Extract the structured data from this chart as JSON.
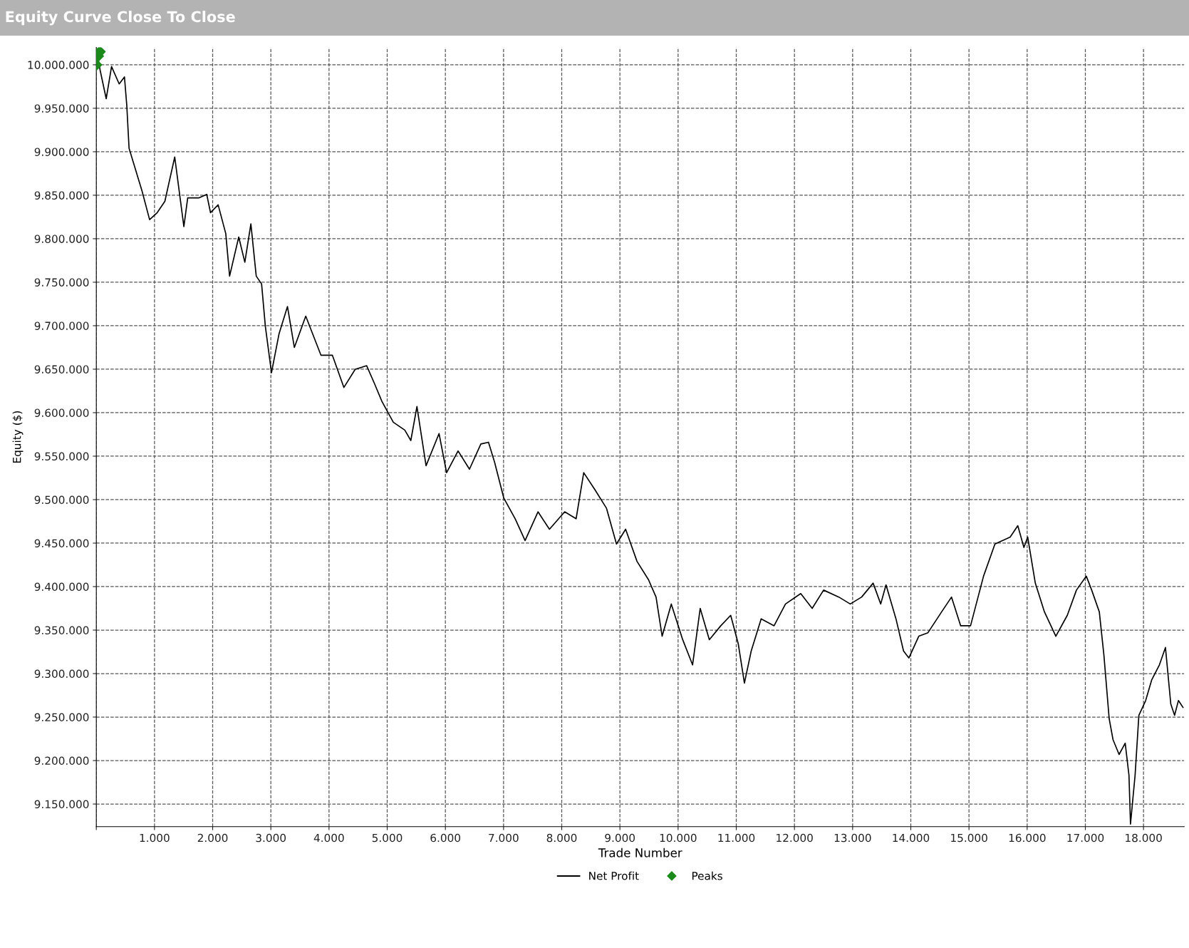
{
  "chart_data": {
    "type": "line",
    "title": "Equity Curve Close To Close",
    "xlabel": "Trade Number",
    "ylabel": "Equity ($)",
    "xlim": [
      0,
      18700
    ],
    "ylim": [
      9124000,
      10020000
    ],
    "xticks": [
      {
        "value": 0,
        "label": null
      },
      {
        "value": 1000,
        "label": "1.000"
      },
      {
        "value": 2000,
        "label": "2.000"
      },
      {
        "value": 3000,
        "label": "3.000"
      },
      {
        "value": 4000,
        "label": "4.000"
      },
      {
        "value": 5000,
        "label": "5.000"
      },
      {
        "value": 6000,
        "label": "6.000"
      },
      {
        "value": 7000,
        "label": "7.000"
      },
      {
        "value": 8000,
        "label": "8.000"
      },
      {
        "value": 9000,
        "label": "9.000"
      },
      {
        "value": 10000,
        "label": "10.000"
      },
      {
        "value": 11000,
        "label": "11.000"
      },
      {
        "value": 12000,
        "label": "12.000"
      },
      {
        "value": 13000,
        "label": "13.000"
      },
      {
        "value": 14000,
        "label": "14.000"
      },
      {
        "value": 15000,
        "label": "15.000"
      },
      {
        "value": 16000,
        "label": "16.000"
      },
      {
        "value": 17000,
        "label": "17.000"
      },
      {
        "value": 18000,
        "label": "18.000"
      }
    ],
    "yticks": [
      {
        "value": 9150000,
        "label": "9.150.000"
      },
      {
        "value": 9200000,
        "label": "9.200.000"
      },
      {
        "value": 9250000,
        "label": "9.250.000"
      },
      {
        "value": 9300000,
        "label": "9.300.000"
      },
      {
        "value": 9350000,
        "label": "9.350.000"
      },
      {
        "value": 9400000,
        "label": "9.400.000"
      },
      {
        "value": 9450000,
        "label": "9.450.000"
      },
      {
        "value": 9500000,
        "label": "9.500.000"
      },
      {
        "value": 9550000,
        "label": "9.550.000"
      },
      {
        "value": 9600000,
        "label": "9.600.000"
      },
      {
        "value": 9650000,
        "label": "9.650.000"
      },
      {
        "value": 9700000,
        "label": "9.700.000"
      },
      {
        "value": 9750000,
        "label": "9.750.000"
      },
      {
        "value": 9800000,
        "label": "9.800.000"
      },
      {
        "value": 9850000,
        "label": "9.850.000"
      },
      {
        "value": 9900000,
        "label": "9.900.000"
      },
      {
        "value": 9950000,
        "label": "9.950.000"
      },
      {
        "value": 10000000,
        "label": "10.000.000"
      }
    ],
    "grid": true,
    "legend": "bottom",
    "series": [
      {
        "name": "Net Profit",
        "color": "#000000",
        "marker": "none",
        "line_style": "solid",
        "x": [
          13,
          65,
          170,
          262,
          393,
          484,
          524,
          563,
          654,
          785,
          916,
          1047,
          1178,
          1348,
          1440,
          1505,
          1571,
          1767,
          1898,
          1963,
          2094,
          2225,
          2291,
          2448,
          2553,
          2657,
          2749,
          2841,
          2906,
          3011,
          3142,
          3286,
          3404,
          3600,
          3862,
          4058,
          4255,
          4451,
          4647,
          4778,
          4909,
          5105,
          5302,
          5406,
          5511,
          5668,
          5891,
          6021,
          6218,
          6414,
          6610,
          6741,
          6846,
          7003,
          7200,
          7370,
          7592,
          7789,
          8051,
          8247,
          8378,
          8574,
          8770,
          8941,
          9098,
          9294,
          9491,
          9621,
          9726,
          9883,
          10079,
          10249,
          10380,
          10537,
          10734,
          10904,
          11035,
          11140,
          11257,
          11428,
          11650,
          11846,
          12108,
          12305,
          12501,
          12763,
          12959,
          13155,
          13352,
          13483,
          13574,
          13745,
          13875,
          13967,
          14137,
          14295,
          14530,
          14700,
          14857,
          15027,
          15250,
          15446,
          15708,
          15839,
          15944,
          16009,
          16140,
          16297,
          16493,
          16690,
          16847,
          17017,
          17109,
          17240,
          17318,
          17410,
          17476,
          17580,
          17685,
          17750,
          17776,
          17855,
          17920,
          18037,
          18142,
          18273,
          18377,
          18469,
          18534,
          18600,
          18680
        ],
        "values": [
          10015000,
          9994000,
          9961000,
          9998000,
          9978000,
          9986000,
          9953000,
          9904000,
          9884000,
          9855000,
          9822000,
          9830000,
          9843000,
          9894000,
          9847000,
          9814000,
          9847000,
          9847000,
          9851000,
          9830000,
          9839000,
          9806000,
          9757000,
          9802000,
          9773000,
          9817000,
          9757000,
          9748000,
          9699000,
          9646000,
          9691000,
          9722000,
          9675000,
          9711000,
          9666000,
          9666000,
          9629000,
          9650000,
          9654000,
          9634000,
          9613000,
          9589000,
          9580000,
          9568000,
          9607000,
          9539000,
          9576000,
          9531000,
          9556000,
          9535000,
          9564000,
          9566000,
          9543000,
          9502000,
          9478000,
          9453000,
          9486000,
          9466000,
          9486000,
          9478000,
          9531000,
          9511000,
          9490000,
          9449000,
          9466000,
          9429000,
          9408000,
          9388000,
          9343000,
          9380000,
          9339000,
          9310000,
          9375000,
          9339000,
          9355000,
          9367000,
          9334000,
          9289000,
          9326000,
          9363000,
          9355000,
          9380000,
          9392000,
          9375000,
          9396000,
          9388000,
          9380000,
          9388000,
          9404000,
          9380000,
          9402000,
          9363000,
          9326000,
          9318000,
          9343000,
          9347000,
          9371000,
          9388000,
          9355000,
          9355000,
          9412000,
          9449000,
          9457000,
          9470000,
          9445000,
          9457000,
          9404000,
          9371000,
          9343000,
          9367000,
          9396000,
          9412000,
          9396000,
          9371000,
          9322000,
          9248000,
          9224000,
          9207000,
          9220000,
          9183000,
          9127000,
          9183000,
          9252000,
          9269000,
          9293000,
          9310000,
          9330000,
          9265000,
          9252000,
          9269000,
          9261000
        ]
      },
      {
        "name": "Peaks",
        "type": "scatter",
        "color": "#1a8a1a",
        "marker": "diamond",
        "x": [
          0,
          30,
          60
        ],
        "values": [
          10000000,
          10010000,
          10015000
        ]
      }
    ]
  }
}
